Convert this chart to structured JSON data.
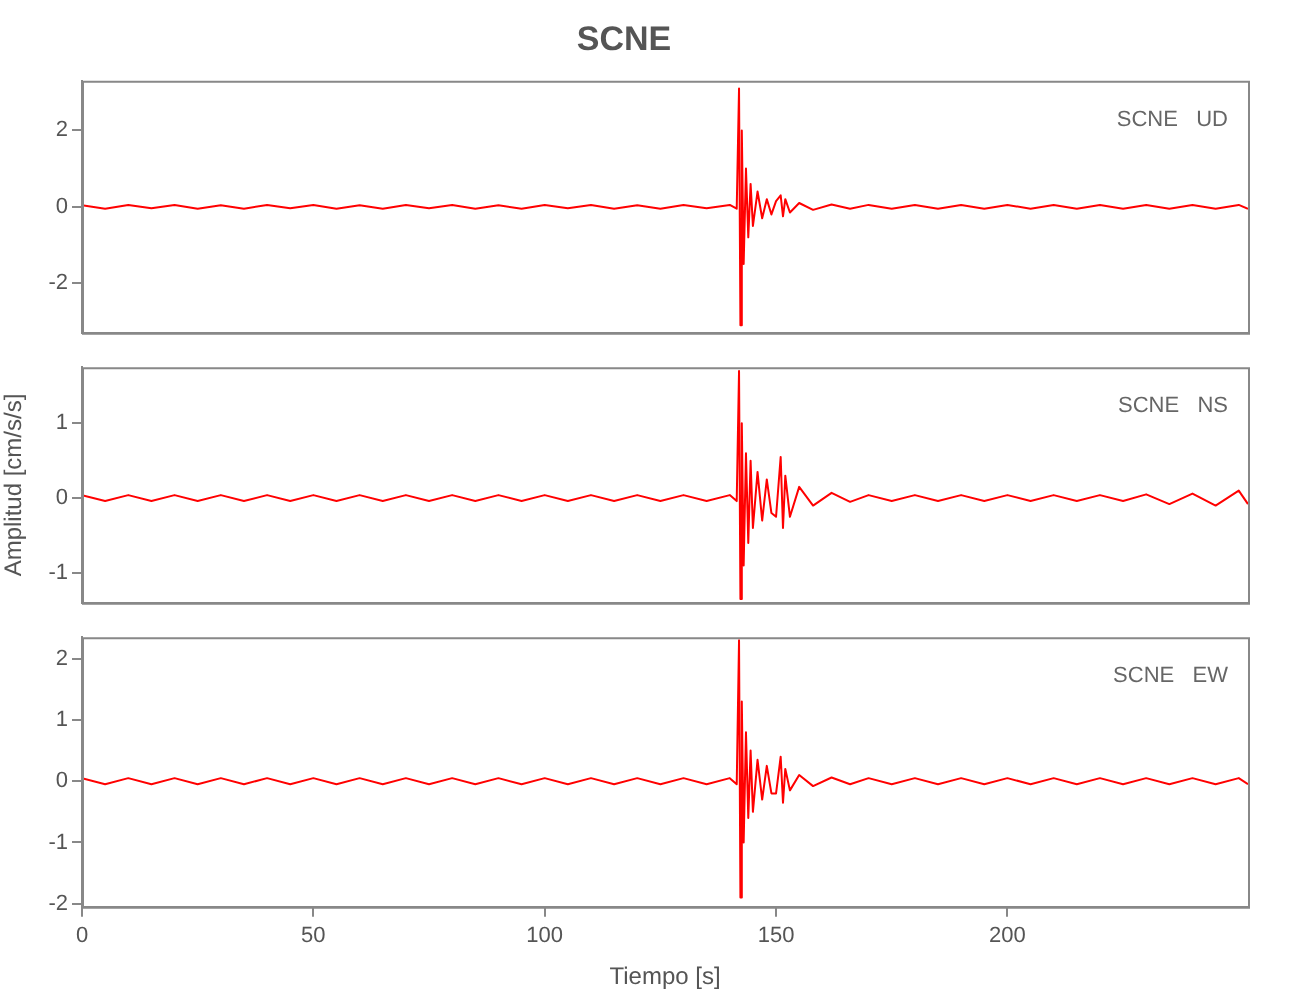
{
  "chart_data": [
    {
      "type": "line",
      "title": "SCNE",
      "annotations": [
        "SCNE   UD"
      ],
      "xlim": [
        0,
        252
      ],
      "xticks": [
        0,
        50,
        100,
        150,
        200
      ],
      "ylim": [
        -3.3,
        3.3
      ],
      "yticks": [
        -2,
        0,
        2
      ],
      "tick_labels": "y",
      "grid": false,
      "legend": false,
      "marker": "none",
      "line_style": "solid",
      "x": [
        0,
        5,
        10,
        15,
        20,
        25,
        30,
        35,
        40,
        45,
        50,
        55,
        60,
        65,
        70,
        75,
        80,
        85,
        90,
        95,
        100,
        105,
        110,
        115,
        120,
        125,
        130,
        135,
        140,
        141.5,
        142,
        142.3,
        142.6,
        143,
        143.5,
        144,
        144.5,
        145,
        146,
        147,
        148,
        149,
        150,
        151,
        151.5,
        152,
        153,
        155,
        158,
        162,
        166,
        170,
        175,
        180,
        185,
        190,
        195,
        200,
        205,
        210,
        215,
        220,
        225,
        230,
        235,
        240,
        245,
        250,
        252
      ],
      "series": [
        {
          "color": "#ff0000",
          "values": [
            0.04,
            -0.05,
            0.05,
            -0.04,
            0.05,
            -0.05,
            0.04,
            -0.05,
            0.05,
            -0.04,
            0.05,
            -0.05,
            0.04,
            -0.05,
            0.05,
            -0.04,
            0.05,
            -0.05,
            0.04,
            -0.05,
            0.05,
            -0.04,
            0.05,
            -0.05,
            0.04,
            -0.05,
            0.05,
            -0.04,
            0.05,
            -0.05,
            3.1,
            -3.1,
            2.0,
            -1.5,
            1.0,
            -0.8,
            0.6,
            -0.5,
            0.4,
            -0.3,
            0.2,
            -0.2,
            0.15,
            0.3,
            -0.25,
            0.2,
            -0.15,
            0.1,
            -0.08,
            0.06,
            -0.05,
            0.05,
            -0.05,
            0.05,
            -0.05,
            0.05,
            -0.05,
            0.05,
            -0.05,
            0.05,
            -0.05,
            0.05,
            -0.05,
            0.05,
            -0.05,
            0.05,
            -0.05,
            0.05,
            -0.05
          ]
        }
      ]
    },
    {
      "type": "line",
      "ylabel": "Amplitud [cm/s/s]",
      "annotations": [
        "SCNE   NS"
      ],
      "xlim": [
        0,
        252
      ],
      "xticks": [
        0,
        50,
        100,
        150,
        200
      ],
      "ylim": [
        -1.4,
        1.75
      ],
      "yticks": [
        -1,
        0,
        1
      ],
      "tick_labels": "y",
      "grid": false,
      "legend": false,
      "marker": "none",
      "line_style": "solid",
      "x": [
        0,
        5,
        10,
        15,
        20,
        25,
        30,
        35,
        40,
        45,
        50,
        55,
        60,
        65,
        70,
        75,
        80,
        85,
        90,
        95,
        100,
        105,
        110,
        115,
        120,
        125,
        130,
        135,
        140,
        141.5,
        142,
        142.3,
        142.6,
        143,
        143.5,
        144,
        144.5,
        145,
        146,
        147,
        148,
        149,
        150,
        151,
        151.5,
        152,
        153,
        155,
        158,
        162,
        166,
        170,
        175,
        180,
        185,
        190,
        195,
        200,
        205,
        210,
        215,
        220,
        225,
        230,
        235,
        240,
        245,
        250,
        252
      ],
      "series": [
        {
          "color": "#ff0000",
          "values": [
            0.04,
            -0.04,
            0.04,
            -0.04,
            0.04,
            -0.04,
            0.04,
            -0.04,
            0.04,
            -0.04,
            0.04,
            -0.04,
            0.04,
            -0.04,
            0.04,
            -0.04,
            0.04,
            -0.04,
            0.04,
            -0.04,
            0.04,
            -0.04,
            0.04,
            -0.04,
            0.04,
            -0.04,
            0.04,
            -0.04,
            0.04,
            -0.04,
            1.7,
            -1.35,
            1.0,
            -0.9,
            0.6,
            -0.6,
            0.5,
            -0.4,
            0.35,
            -0.3,
            0.25,
            -0.2,
            -0.25,
            0.55,
            -0.4,
            0.3,
            -0.25,
            0.15,
            -0.1,
            0.07,
            -0.05,
            0.04,
            -0.04,
            0.04,
            -0.04,
            0.04,
            -0.04,
            0.04,
            -0.04,
            0.04,
            -0.04,
            0.04,
            -0.04,
            0.05,
            -0.08,
            0.06,
            -0.1,
            0.1,
            -0.08
          ]
        }
      ]
    },
    {
      "type": "line",
      "xlabel": "Tiempo [s]",
      "annotations": [
        "SCNE   EW"
      ],
      "xlim": [
        0,
        252
      ],
      "xticks": [
        0,
        50,
        100,
        150,
        200
      ],
      "ylim": [
        -2.05,
        2.35
      ],
      "yticks": [
        -2,
        -1,
        0,
        1,
        2
      ],
      "grid": false,
      "legend": false,
      "marker": "none",
      "line_style": "solid",
      "x": [
        0,
        5,
        10,
        15,
        20,
        25,
        30,
        35,
        40,
        45,
        50,
        55,
        60,
        65,
        70,
        75,
        80,
        85,
        90,
        95,
        100,
        105,
        110,
        115,
        120,
        125,
        130,
        135,
        140,
        141.5,
        142,
        142.3,
        142.6,
        143,
        143.5,
        144,
        144.5,
        145,
        146,
        147,
        148,
        149,
        150,
        151,
        151.5,
        152,
        153,
        155,
        158,
        162,
        166,
        170,
        175,
        180,
        185,
        190,
        195,
        200,
        205,
        210,
        215,
        220,
        225,
        230,
        235,
        240,
        245,
        250,
        252
      ],
      "series": [
        {
          "color": "#ff0000",
          "values": [
            0.05,
            -0.05,
            0.05,
            -0.05,
            0.05,
            -0.05,
            0.05,
            -0.05,
            0.05,
            -0.05,
            0.05,
            -0.05,
            0.05,
            -0.05,
            0.05,
            -0.05,
            0.05,
            -0.05,
            0.05,
            -0.05,
            0.05,
            -0.05,
            0.05,
            -0.05,
            0.05,
            -0.05,
            0.05,
            -0.05,
            0.05,
            -0.05,
            2.3,
            -1.9,
            1.3,
            -1.0,
            0.8,
            -0.6,
            0.5,
            -0.5,
            0.35,
            -0.3,
            0.25,
            -0.2,
            -0.2,
            0.4,
            -0.35,
            0.2,
            -0.15,
            0.1,
            -0.08,
            0.06,
            -0.05,
            0.05,
            -0.05,
            0.05,
            -0.05,
            0.05,
            -0.05,
            0.05,
            -0.05,
            0.05,
            -0.05,
            0.05,
            -0.05,
            0.05,
            -0.05,
            0.05,
            -0.05,
            0.05,
            -0.05
          ]
        }
      ]
    }
  ]
}
